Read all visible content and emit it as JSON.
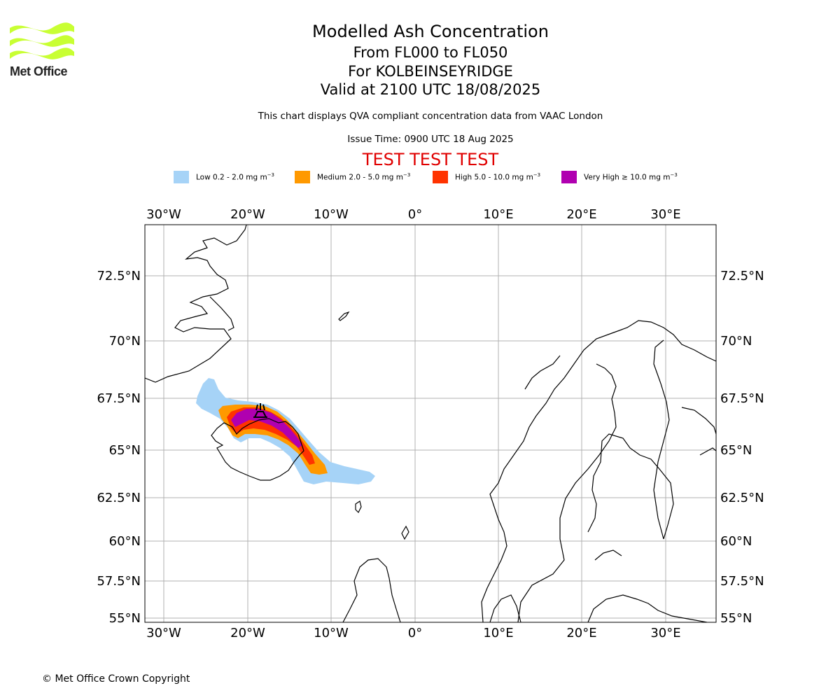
{
  "logo": {
    "text": "Met Office"
  },
  "header": {
    "title": "Modelled Ash Concentration",
    "levels": "From FL000 to FL050",
    "location": "For KOLBEINSEYRIDGE",
    "valid": "Valid at 2100 UTC 18/08/2025",
    "description": "This chart displays QVA compliant concentration data from VAAC London",
    "issue_time": "Issue Time: 0900 UTC 18 Aug 2025",
    "warning": "TEST TEST TEST"
  },
  "legend": [
    {
      "label": "Low 0.2 - 2.0 mg m",
      "color": "#a6d3f7"
    },
    {
      "label": "Medium 2.0 - 5.0 mg m",
      "color": "#ff9900"
    },
    {
      "label": "High 5.0 - 10.0 mg m",
      "color": "#ff3300"
    },
    {
      "label": "Very High ≥ 10.0 mg m",
      "color": "#b000b0"
    }
  ],
  "legend_unit_exponent": "−3",
  "map": {
    "lon_ticks": [
      "30°W",
      "20°W",
      "10°W",
      "0°",
      "10°E",
      "20°E",
      "30°E"
    ],
    "lat_ticks": [
      "72.5°N",
      "70°N",
      "67.5°N",
      "65°N",
      "62.5°N",
      "60°N",
      "57.5°N",
      "55°N"
    ],
    "volcano_icon": "volcano-icon"
  },
  "footer": {
    "copyright": "© Met Office Crown Copyright"
  }
}
